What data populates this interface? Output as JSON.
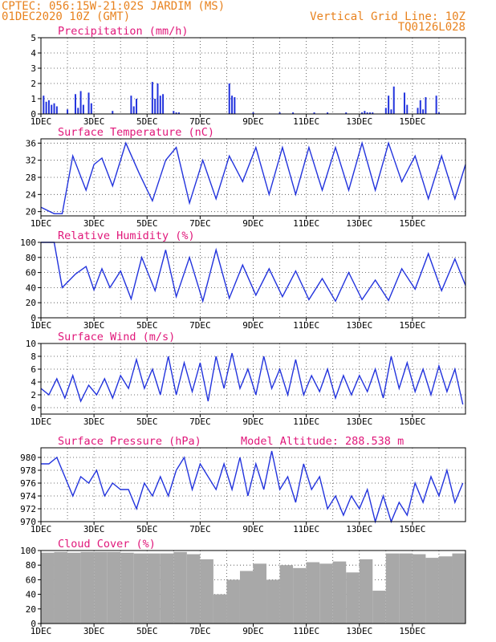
{
  "header": {
    "line1": "CPTEC:    056:15W-21:02S  JARDIM (MS)",
    "line2": "01DEC2020 10Z (GMT)",
    "right1": "Vertical Grid Line: 10Z",
    "right2": "TQ0126L028"
  },
  "colors": {
    "header": "#e8821e",
    "title": "#e0177a",
    "series": "#2233dd",
    "cloud": "#a8a8a8",
    "grid": "#444444"
  },
  "chart_data": [
    {
      "type": "bar",
      "title": "Precipitation (mm/h)",
      "ylim": [
        0,
        5
      ],
      "yticks": [
        "0",
        "1",
        "2",
        "3",
        "4",
        "5"
      ],
      "xticks": [
        "1DEC",
        "3DEC",
        "5DEC",
        "7DEC",
        "9DEC",
        "11DEC",
        "13DEC",
        "15DEC"
      ],
      "x": [
        0.1,
        0.2,
        0.3,
        0.4,
        0.5,
        0.6,
        1.0,
        1.3,
        1.4,
        1.5,
        1.6,
        1.8,
        1.9,
        2.7,
        3.4,
        3.5,
        3.6,
        4.2,
        4.3,
        4.4,
        4.5,
        4.6,
        5.0,
        5.1,
        5.2,
        7.1,
        7.2,
        7.3,
        8.0,
        9.0,
        9.5,
        10.3,
        10.8,
        11.5,
        12.1,
        12.2,
        12.3,
        12.4,
        12.5,
        13.0,
        13.1,
        13.2,
        13.3,
        13.7,
        13.8,
        14.2,
        14.3,
        14.4,
        14.5,
        14.9,
        15.0
      ],
      "values": [
        1.2,
        0.8,
        0.9,
        0.6,
        0.7,
        0.5,
        0.3,
        1.3,
        0.4,
        1.5,
        0.6,
        1.4,
        0.7,
        0.2,
        1.2,
        0.5,
        1.0,
        2.1,
        1.0,
        2.0,
        1.2,
        1.3,
        0.2,
        0.1,
        0.1,
        2.0,
        1.2,
        1.1,
        0.1,
        0.1,
        0.1,
        0.1,
        0.1,
        0.1,
        0.1,
        0.2,
        0.1,
        0.1,
        0.1,
        0.4,
        1.2,
        0.3,
        1.8,
        1.4,
        0.6,
        0.4,
        0.9,
        0.3,
        1.1,
        1.2,
        0.1
      ]
    },
    {
      "type": "line",
      "title": "Surface Temperature (nC)",
      "ylim": [
        19,
        37
      ],
      "yticks": [
        "20",
        "24",
        "28",
        "32",
        "36"
      ],
      "xticks": [
        "1DEC",
        "3DEC",
        "5DEC",
        "7DEC",
        "9DEC",
        "11DEC",
        "13DEC",
        "15DEC"
      ],
      "x": [
        0,
        0.5,
        0.8,
        1.2,
        1.7,
        2.0,
        2.3,
        2.7,
        3.2,
        3.7,
        4.2,
        4.7,
        5.1,
        5.6,
        6.1,
        6.6,
        7.1,
        7.6,
        8.1,
        8.6,
        9.1,
        9.6,
        10.1,
        10.6,
        11.1,
        11.6,
        12.1,
        12.6,
        13.1,
        13.6,
        14.1,
        14.6,
        15.1,
        15.6,
        16
      ],
      "values": [
        21,
        19.5,
        19.5,
        33,
        25,
        31,
        32.5,
        26,
        36,
        29,
        22.5,
        32,
        35,
        22,
        32,
        23,
        33,
        27,
        35,
        24,
        35,
        24,
        35,
        25,
        35,
        25,
        36,
        25,
        36,
        27,
        33,
        23,
        33,
        23,
        31
      ]
    },
    {
      "type": "line",
      "title": "Relative Humidity (%)",
      "ylim": [
        0,
        100
      ],
      "yticks": [
        "0",
        "20",
        "40",
        "60",
        "80",
        "100"
      ],
      "xticks": [
        "1DEC",
        "3DEC",
        "5DEC",
        "7DEC",
        "9DEC",
        "11DEC",
        "13DEC",
        "15DEC"
      ],
      "x": [
        0,
        0.5,
        0.8,
        1.3,
        1.7,
        2.0,
        2.3,
        2.6,
        3.0,
        3.4,
        3.8,
        4.3,
        4.7,
        5.1,
        5.6,
        6.1,
        6.6,
        7.1,
        7.6,
        8.1,
        8.6,
        9.1,
        9.6,
        10.1,
        10.6,
        11.1,
        11.6,
        12.1,
        12.6,
        13.1,
        13.6,
        14.1,
        14.6,
        15.1,
        15.6,
        16
      ],
      "values": [
        100,
        100,
        40,
        58,
        68,
        37,
        65,
        40,
        62,
        25,
        80,
        36,
        90,
        28,
        80,
        22,
        90,
        26,
        70,
        30,
        65,
        28,
        62,
        24,
        52,
        22,
        60,
        24,
        50,
        23,
        65,
        38,
        85,
        36,
        78,
        43
      ]
    },
    {
      "type": "line",
      "title": "Surface Wind (m/s)",
      "ylim": [
        -1,
        10
      ],
      "yticks": [
        "0",
        "2",
        "4",
        "6",
        "8",
        "10"
      ],
      "xticks": [
        "1DEC",
        "3DEC",
        "5DEC",
        "7DEC",
        "9DEC",
        "11DEC",
        "13DEC",
        "15DEC"
      ],
      "x": [
        0,
        0.3,
        0.6,
        0.9,
        1.2,
        1.5,
        1.8,
        2.1,
        2.4,
        2.7,
        3.0,
        3.3,
        3.6,
        3.9,
        4.2,
        4.5,
        4.8,
        5.1,
        5.4,
        5.7,
        6.0,
        6.3,
        6.6,
        6.9,
        7.2,
        7.5,
        7.8,
        8.1,
        8.4,
        8.7,
        9.0,
        9.3,
        9.6,
        9.9,
        10.2,
        10.5,
        10.8,
        11.1,
        11.4,
        11.7,
        12.0,
        12.3,
        12.6,
        12.9,
        13.2,
        13.5,
        13.8,
        14.1,
        14.4,
        14.7,
        15.0,
        15.3,
        15.6,
        15.9
      ],
      "values": [
        3,
        2,
        4.5,
        1.5,
        5,
        1,
        3.5,
        2,
        4.5,
        1.5,
        5,
        3,
        7.5,
        3,
        6,
        2,
        8,
        2,
        7,
        2.5,
        7,
        1,
        8,
        3,
        8.5,
        3,
        6,
        2,
        8,
        3,
        6,
        2,
        7.5,
        2,
        5,
        2.5,
        6,
        1.5,
        5,
        2,
        5,
        2.5,
        6,
        1.5,
        8,
        3,
        7,
        2.5,
        6,
        2,
        6.5,
        2.5,
        6,
        0.5
      ]
    },
    {
      "type": "line",
      "title": "Surface Pressure (hPa)",
      "annotation": "Model Altitude: 288.538  m",
      "ylim": [
        970,
        981.5
      ],
      "yticks": [
        "970",
        "972",
        "974",
        "976",
        "978",
        "980"
      ],
      "xticks": [
        "1DEC",
        "3DEC",
        "5DEC",
        "7DEC",
        "9DEC",
        "11DEC",
        "13DEC",
        "15DEC"
      ],
      "x": [
        0,
        0.3,
        0.6,
        0.9,
        1.2,
        1.5,
        1.8,
        2.1,
        2.4,
        2.7,
        3.0,
        3.3,
        3.6,
        3.9,
        4.2,
        4.5,
        4.8,
        5.1,
        5.4,
        5.7,
        6.0,
        6.3,
        6.6,
        6.9,
        7.2,
        7.5,
        7.8,
        8.1,
        8.4,
        8.7,
        9.0,
        9.3,
        9.6,
        9.9,
        10.2,
        10.5,
        10.8,
        11.1,
        11.4,
        11.7,
        12.0,
        12.3,
        12.6,
        12.9,
        13.2,
        13.5,
        13.8,
        14.1,
        14.4,
        14.7,
        15.0,
        15.3,
        15.6,
        15.9
      ],
      "values": [
        979,
        979,
        980,
        977,
        974,
        977,
        976,
        978,
        974,
        976,
        975,
        975,
        972,
        976,
        974,
        977,
        974,
        978,
        980,
        975,
        979,
        977,
        975,
        979,
        975,
        980,
        974,
        979,
        975,
        981,
        975,
        977,
        973,
        979,
        975,
        977,
        972,
        974,
        971,
        974,
        972,
        975,
        970,
        974,
        970,
        973,
        971,
        976,
        973,
        977,
        974,
        978,
        973,
        976
      ]
    },
    {
      "type": "bar",
      "title": "Cloud Cover (%)",
      "ylim": [
        0,
        100
      ],
      "yticks": [
        "0",
        "20",
        "40",
        "60",
        "80",
        "100"
      ],
      "xticks": [
        "1DEC",
        "3DEC",
        "5DEC",
        "7DEC",
        "9DEC",
        "11DEC",
        "13DEC",
        "15DEC"
      ],
      "x": [
        0,
        0.5,
        1.0,
        1.5,
        2.0,
        2.5,
        3.0,
        3.5,
        4.0,
        4.5,
        5.0,
        5.5,
        6.0,
        6.5,
        7.0,
        7.5,
        8.0,
        8.5,
        9.0,
        9.5,
        10.0,
        10.5,
        11.0,
        11.5,
        12.0,
        12.5,
        13.0,
        13.5,
        14.0,
        14.5,
        15.0,
        15.5
      ],
      "values": [
        97,
        98,
        97,
        98,
        98,
        98,
        97,
        96,
        96,
        96,
        98,
        95,
        88,
        40,
        60,
        72,
        82,
        60,
        80,
        76,
        84,
        82,
        85,
        70,
        88,
        45,
        96,
        96,
        95,
        90,
        92,
        96
      ]
    }
  ]
}
